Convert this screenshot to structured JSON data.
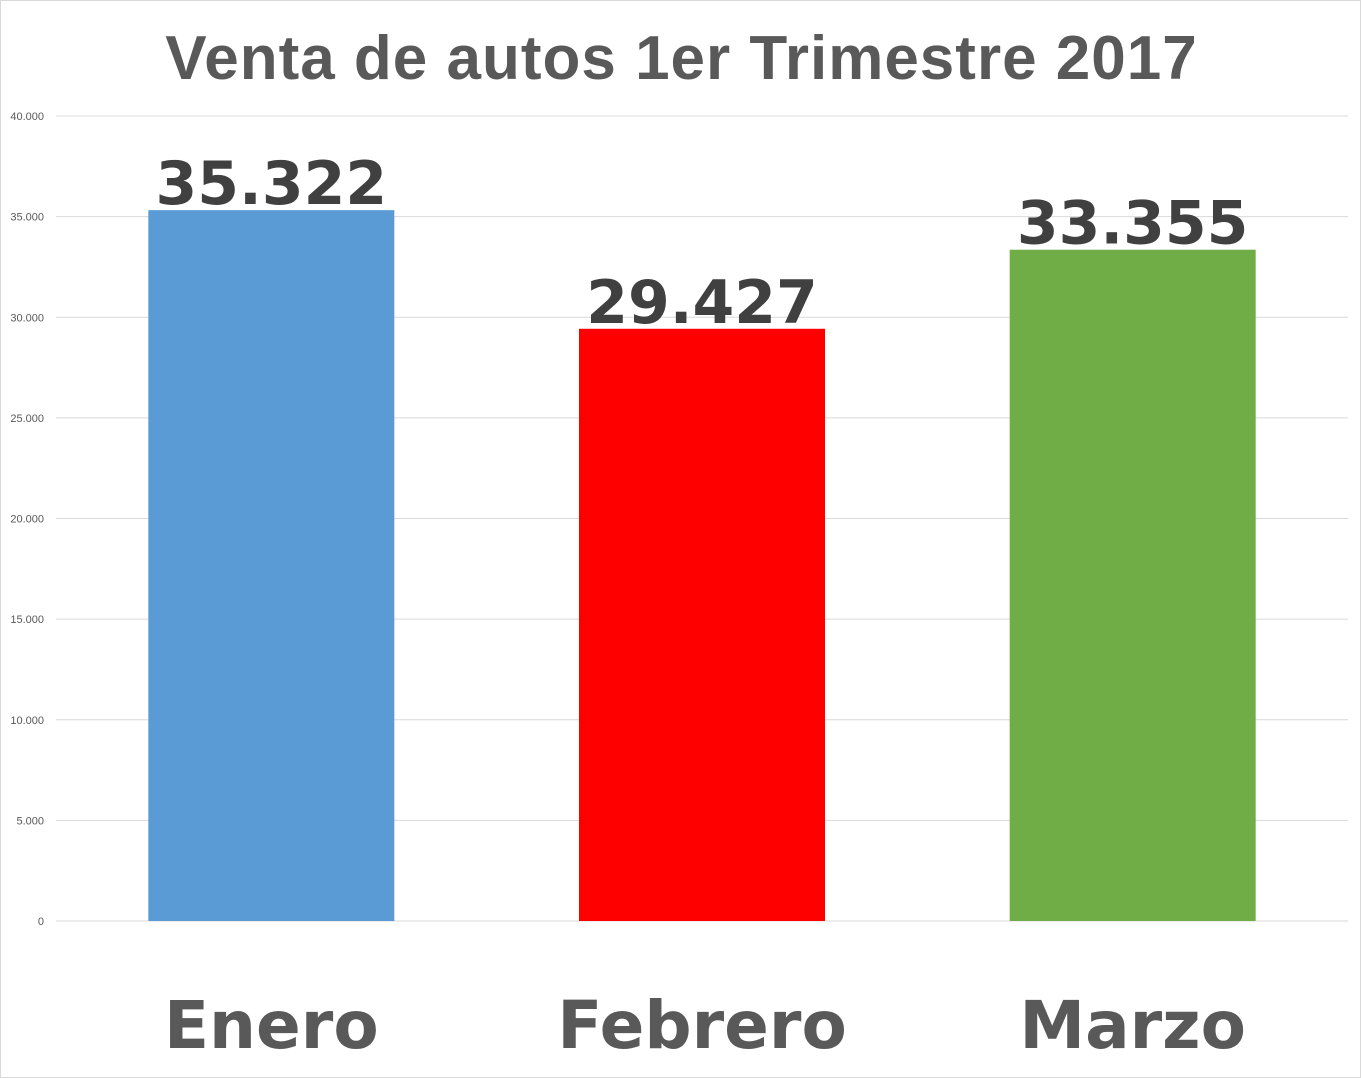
{
  "chart_data": {
    "type": "bar",
    "title": "Venta de autos 1er Trimestre 2017",
    "categories": [
      "Enero",
      "Febrero",
      "Marzo"
    ],
    "values": [
      35322,
      29427,
      33355
    ],
    "value_labels": [
      "35.322",
      "29.427",
      "33.355"
    ],
    "bar_colors": [
      "#5b9bd5",
      "#ff0000",
      "#70ad47"
    ],
    "ylim": [
      0,
      40000
    ],
    "yticks": [
      0,
      5000,
      10000,
      15000,
      20000,
      25000,
      30000,
      35000,
      40000
    ],
    "ytick_labels": [
      "0",
      "5.000",
      "10.000",
      "15.000",
      "20.000",
      "25.000",
      "30.000",
      "35.000",
      "40.000"
    ],
    "grid": true,
    "legend": "none",
    "xlabel": "",
    "ylabel": ""
  }
}
